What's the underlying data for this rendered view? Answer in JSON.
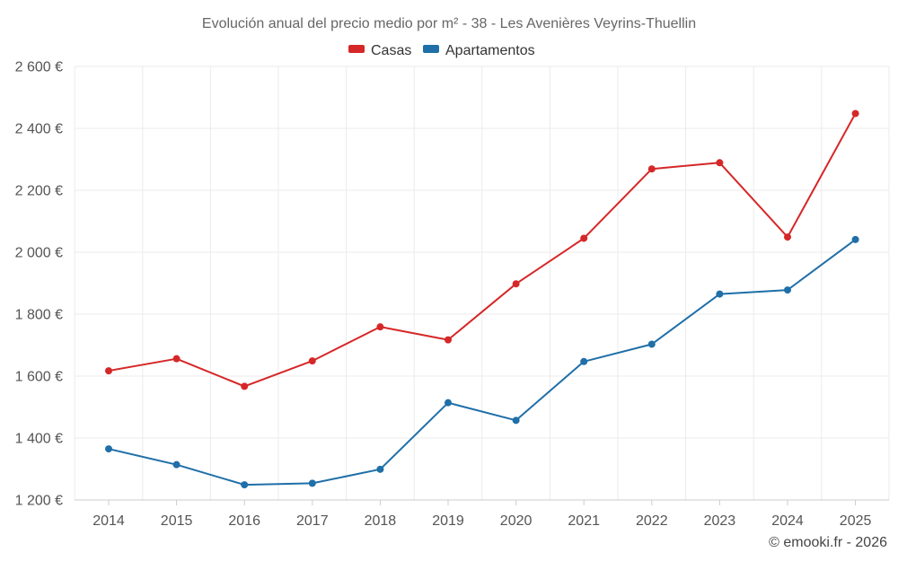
{
  "chart_data": {
    "type": "line",
    "title": "Evolución anual del precio medio por m² - 38 - Les Avenières Veyrins-Thuellin",
    "categories": [
      "2014",
      "2015",
      "2016",
      "2017",
      "2018",
      "2019",
      "2020",
      "2021",
      "2022",
      "2023",
      "2024",
      "2025"
    ],
    "series": [
      {
        "name": "Casas",
        "color": "#d62728",
        "values": [
          1617,
          1656,
          1567,
          1649,
          1759,
          1717,
          1898,
          2045,
          2269,
          2289,
          2049,
          2448
        ]
      },
      {
        "name": "Apartamentos",
        "color": "#1f6fa8",
        "values": [
          1365,
          1314,
          1249,
          1254,
          1299,
          1514,
          1457,
          1647,
          1703,
          1865,
          1878,
          2041
        ]
      }
    ],
    "ylim": [
      1200,
      2600
    ],
    "yticks": [
      1200,
      1400,
      1600,
      1800,
      2000,
      2200,
      2400,
      2600
    ],
    "ytick_labels": [
      "1 200 €",
      "1 400 €",
      "1 600 €",
      "1 800 €",
      "2 000 €",
      "2 200 €",
      "2 400 €",
      "2 600 €"
    ],
    "xlabel": "",
    "ylabel": "",
    "grid": true,
    "legend": "top-center"
  },
  "credit": "© emooki.fr - 2026"
}
